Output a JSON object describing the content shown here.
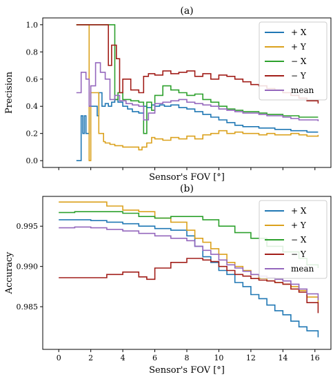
{
  "figure": {
    "panels": [
      "(a)",
      "(b)"
    ]
  },
  "chart_data": [
    {
      "type": "line",
      "title": "(a)",
      "xlabel": "Sensor's FOV [°]",
      "ylabel": "Precision",
      "xlim": [
        -1,
        17
      ],
      "ylim": [
        -0.05,
        1.05
      ],
      "xticks": [
        0,
        2,
        4,
        6,
        8,
        10,
        12,
        14,
        16
      ],
      "show_xtick_labels": false,
      "yticks": [
        0.0,
        0.2,
        0.4,
        0.6,
        0.8,
        1.0
      ],
      "ytick_labels": [
        "0.0",
        "0.2",
        "0.4",
        "0.6",
        "0.8",
        "1.0"
      ],
      "grid": false,
      "legend": "top-right",
      "series": [
        {
          "name": "+ X",
          "color": "#1f77b4",
          "x": [
            1.1,
            1.4,
            1.5,
            1.6,
            1.7,
            1.9,
            2.0,
            2.4,
            2.5,
            2.7,
            2.9,
            3.1,
            3.3,
            3.5,
            3.7,
            4.0,
            4.3,
            4.6,
            5.0,
            5.3,
            5.5,
            5.8,
            6.0,
            6.3,
            6.6,
            7.0,
            7.5,
            8.0,
            8.5,
            9.0,
            9.5,
            10.0,
            10.5,
            11.0,
            11.5,
            12.0,
            12.5,
            13.0,
            13.5,
            14.0,
            14.5,
            15.0,
            15.5,
            16.2
          ],
          "y": [
            0.0,
            0.33,
            0.2,
            0.33,
            0.2,
            0.4,
            0.4,
            0.33,
            0.5,
            0.4,
            0.42,
            0.4,
            0.43,
            0.45,
            0.43,
            0.4,
            0.38,
            0.36,
            0.35,
            0.4,
            0.39,
            0.41,
            0.4,
            0.41,
            0.4,
            0.41,
            0.39,
            0.38,
            0.36,
            0.34,
            0.32,
            0.3,
            0.28,
            0.26,
            0.25,
            0.25,
            0.24,
            0.24,
            0.23,
            0.23,
            0.22,
            0.22,
            0.21,
            0.21
          ]
        },
        {
          "name": "+ Y",
          "color": "#dba11c",
          "x": [
            1.1,
            1.9,
            2.0,
            2.5,
            2.8,
            2.9,
            3.2,
            3.5,
            4.0,
            4.5,
            5.0,
            5.2,
            5.5,
            5.8,
            6.0,
            6.5,
            7.0,
            7.5,
            8.0,
            8.5,
            9.0,
            9.5,
            10.0,
            10.5,
            11.0,
            11.5,
            12.0,
            12.5,
            13.0,
            13.5,
            14.0,
            14.5,
            15.0,
            15.5,
            16.2
          ],
          "y": [
            1.0,
            0.0,
            0.5,
            0.2,
            0.14,
            0.13,
            0.12,
            0.11,
            0.1,
            0.1,
            0.08,
            0.1,
            0.13,
            0.17,
            0.16,
            0.15,
            0.17,
            0.16,
            0.18,
            0.16,
            0.19,
            0.2,
            0.22,
            0.2,
            0.21,
            0.2,
            0.2,
            0.19,
            0.2,
            0.19,
            0.19,
            0.2,
            0.19,
            0.18,
            0.19
          ]
        },
        {
          "name": "− X",
          "color": "#2ca02c",
          "x": [
            1.1,
            3.3,
            3.5,
            3.7,
            4.0,
            4.5,
            5.0,
            5.3,
            5.5,
            5.8,
            6.0,
            6.5,
            7.0,
            7.5,
            8.0,
            8.5,
            9.0,
            9.5,
            10.0,
            10.5,
            11.0,
            11.5,
            12.0,
            12.5,
            13.0,
            13.5,
            14.0,
            14.5,
            15.0,
            15.5,
            16.2
          ],
          "y": [
            1.0,
            1.0,
            0.45,
            0.5,
            0.45,
            0.44,
            0.43,
            0.2,
            0.43,
            0.37,
            0.48,
            0.55,
            0.52,
            0.5,
            0.48,
            0.49,
            0.45,
            0.43,
            0.4,
            0.38,
            0.37,
            0.36,
            0.36,
            0.35,
            0.34,
            0.34,
            0.33,
            0.33,
            0.32,
            0.32,
            0.32
          ]
        },
        {
          "name": "− Y",
          "color": "#a11d18",
          "x": [
            1.1,
            3.1,
            3.3,
            3.6,
            3.8,
            4.0,
            4.5,
            5.0,
            5.3,
            5.6,
            6.0,
            6.5,
            7.0,
            7.5,
            8.0,
            8.5,
            9.0,
            9.5,
            10.0,
            10.5,
            11.0,
            11.5,
            12.0,
            12.5,
            13.0,
            13.5,
            14.0,
            14.5,
            15.0,
            15.5,
            16.2
          ],
          "y": [
            1.0,
            0.7,
            0.85,
            0.75,
            0.5,
            0.6,
            0.52,
            0.5,
            0.62,
            0.64,
            0.63,
            0.66,
            0.64,
            0.65,
            0.66,
            0.62,
            0.64,
            0.6,
            0.63,
            0.62,
            0.6,
            0.58,
            0.56,
            0.55,
            0.53,
            0.52,
            0.5,
            0.48,
            0.46,
            0.44,
            0.42
          ]
        },
        {
          "name": "mean",
          "color": "#9467bd",
          "x": [
            1.1,
            1.4,
            1.7,
            1.9,
            2.0,
            2.3,
            2.6,
            2.9,
            3.2,
            3.5,
            3.8,
            4.2,
            4.6,
            5.0,
            5.3,
            5.6,
            6.0,
            6.5,
            7.0,
            7.5,
            8.0,
            8.5,
            9.0,
            9.5,
            10.0,
            10.5,
            11.0,
            11.5,
            12.0,
            12.5,
            13.0,
            13.5,
            14.0,
            14.5,
            15.0,
            15.5,
            16.2
          ],
          "y": [
            0.5,
            0.65,
            0.6,
            0.4,
            0.55,
            0.72,
            0.65,
            0.6,
            0.45,
            0.48,
            0.44,
            0.42,
            0.41,
            0.4,
            0.3,
            0.35,
            0.42,
            0.43,
            0.44,
            0.45,
            0.43,
            0.42,
            0.41,
            0.4,
            0.38,
            0.37,
            0.36,
            0.35,
            0.35,
            0.34,
            0.33,
            0.33,
            0.32,
            0.31,
            0.3,
            0.3,
            0.29
          ]
        }
      ]
    },
    {
      "type": "line",
      "title": "(b)",
      "xlabel": "Sensor's FOV [°]",
      "ylabel": "Accuracy",
      "xlim": [
        -1,
        17
      ],
      "ylim": [
        0.9797,
        0.9987
      ],
      "xticks": [
        0,
        2,
        4,
        6,
        8,
        10,
        12,
        14,
        16
      ],
      "xtick_labels": [
        "0",
        "2",
        "4",
        "6",
        "8",
        "10",
        "12",
        "14",
        "16"
      ],
      "yticks": [
        0.985,
        0.99,
        0.995
      ],
      "ytick_labels": [
        "0.985",
        "0.990",
        "0.995"
      ],
      "grid": false,
      "legend": "top-right",
      "series": [
        {
          "name": "+ X",
          "color": "#1f77b4",
          "x": [
            0,
            1,
            2,
            3,
            4,
            5,
            6,
            7,
            8,
            8.5,
            9,
            9.5,
            10,
            10.5,
            11,
            11.5,
            12,
            12.5,
            13,
            13.5,
            14,
            14.5,
            15,
            15.5,
            16.2
          ],
          "y": [
            0.9958,
            0.9958,
            0.9957,
            0.9955,
            0.9953,
            0.995,
            0.9947,
            0.9945,
            0.9938,
            0.9925,
            0.9912,
            0.9905,
            0.9895,
            0.989,
            0.988,
            0.9875,
            0.9865,
            0.986,
            0.9852,
            0.9845,
            0.984,
            0.9832,
            0.9825,
            0.982,
            0.9812
          ]
        },
        {
          "name": "+ Y",
          "color": "#dba11c",
          "x": [
            0,
            1,
            2,
            3,
            4,
            5,
            6,
            7,
            8,
            8.5,
            9,
            9.5,
            10,
            10.5,
            11,
            11.5,
            12,
            12.5,
            13,
            13.5,
            14,
            14.5,
            15,
            15.5,
            16.2
          ],
          "y": [
            0.998,
            0.998,
            0.998,
            0.9975,
            0.997,
            0.9968,
            0.996,
            0.9955,
            0.9945,
            0.9935,
            0.993,
            0.9922,
            0.9915,
            0.9905,
            0.99,
            0.9895,
            0.989,
            0.9885,
            0.9882,
            0.988,
            0.9878,
            0.9875,
            0.987,
            0.9862,
            0.9855
          ]
        },
        {
          "name": "− X",
          "color": "#2ca02c",
          "x": [
            0,
            1,
            2,
            3,
            4,
            5,
            6,
            7,
            8,
            9,
            10,
            11,
            12,
            13,
            14,
            15,
            15.5,
            16.2
          ],
          "y": [
            0.9967,
            0.9968,
            0.9968,
            0.9968,
            0.9966,
            0.9962,
            0.996,
            0.9962,
            0.9962,
            0.9958,
            0.995,
            0.9942,
            0.9935,
            0.9925,
            0.9918,
            0.991,
            0.9902,
            0.9898
          ]
        },
        {
          "name": "− Y",
          "color": "#a11d18",
          "x": [
            0,
            1,
            2,
            3,
            4,
            5,
            5.5,
            6,
            7,
            8,
            9,
            9.5,
            10,
            10.5,
            11,
            11.5,
            12,
            12.5,
            13,
            13.5,
            14,
            14.5,
            15,
            15.5,
            16.2
          ],
          "y": [
            0.9886,
            0.9886,
            0.9886,
            0.989,
            0.9893,
            0.9887,
            0.9884,
            0.9898,
            0.9905,
            0.991,
            0.9908,
            0.9906,
            0.99,
            0.9895,
            0.989,
            0.9888,
            0.9885,
            0.9883,
            0.9882,
            0.988,
            0.9878,
            0.9872,
            0.9868,
            0.9855,
            0.9842
          ]
        },
        {
          "name": "mean",
          "color": "#9467bd",
          "x": [
            0,
            1,
            2,
            3,
            4,
            5,
            6,
            7,
            8,
            8.5,
            9,
            9.5,
            10,
            10.5,
            11,
            11.5,
            12,
            12.5,
            13,
            13.5,
            14,
            14.5,
            15,
            15.5,
            16.2
          ],
          "y": [
            0.9948,
            0.9949,
            0.9948,
            0.9946,
            0.9944,
            0.9941,
            0.9938,
            0.9935,
            0.9932,
            0.9925,
            0.992,
            0.9915,
            0.9908,
            0.9902,
            0.9898,
            0.9894,
            0.989,
            0.9888,
            0.9886,
            0.9884,
            0.9882,
            0.9878,
            0.9872,
            0.9866,
            0.9858
          ]
        }
      ]
    }
  ]
}
